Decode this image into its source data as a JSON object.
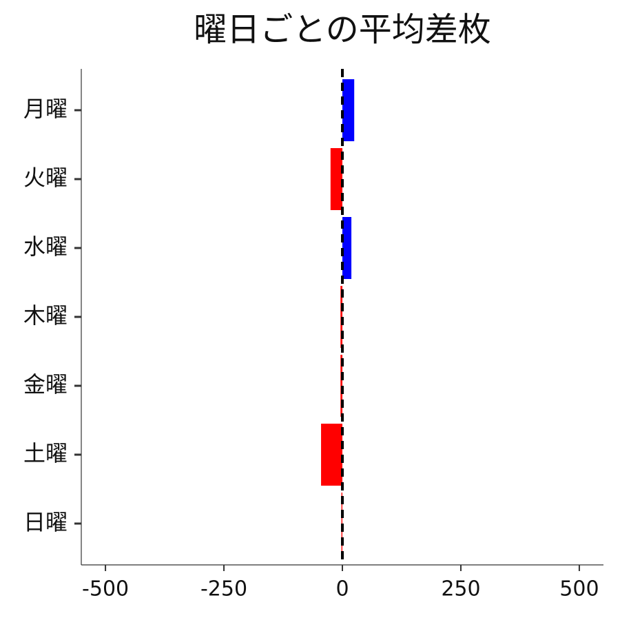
{
  "chart_data": {
    "type": "barh",
    "title": "曜日ごとの平均差枚",
    "categories": [
      "月曜",
      "火曜",
      "水曜",
      "木曜",
      "金曜",
      "土曜",
      "日曜"
    ],
    "values": [
      25,
      -25,
      19,
      -4,
      -4,
      -45,
      -2
    ],
    "colors": [
      "#0000ff",
      "#ff0000",
      "#0000ff",
      "#ff0000",
      "#ff0000",
      "#ff0000",
      "#ff0000"
    ],
    "xlim": [
      -551,
      551
    ],
    "xticks": [
      -500,
      -250,
      0,
      250,
      500
    ],
    "reference_line": 0,
    "reference_line_color": "#000000",
    "grid": false
  }
}
